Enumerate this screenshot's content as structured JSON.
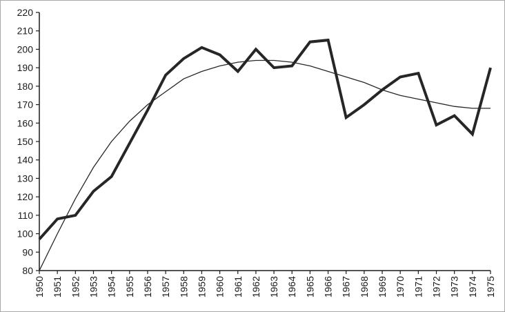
{
  "chart_data": {
    "type": "line",
    "title": "",
    "xlabel": "",
    "ylabel": "",
    "ylim": [
      80,
      220
    ],
    "yticks": [
      80,
      90,
      100,
      110,
      120,
      130,
      140,
      150,
      160,
      170,
      180,
      190,
      200,
      210,
      220
    ],
    "grid": false,
    "legend": "none",
    "x": [
      1950,
      1951,
      1952,
      1953,
      1954,
      1955,
      1956,
      1957,
      1958,
      1959,
      1960,
      1961,
      1962,
      1963,
      1964,
      1965,
      1966,
      1967,
      1968,
      1969,
      1970,
      1971,
      1972,
      1973,
      1974,
      1975
    ],
    "series": [
      {
        "style": "thick",
        "color": "#262626",
        "values": [
          97,
          108,
          110,
          123,
          131,
          149,
          167,
          186,
          195,
          201,
          197,
          188,
          200,
          190,
          191,
          204,
          205,
          163,
          170,
          178,
          185,
          187,
          159,
          164,
          154,
          190
        ]
      },
      {
        "style": "thin-trend",
        "color": "#262626",
        "values": [
          80,
          100,
          119,
          136,
          150,
          161,
          170,
          177,
          184,
          188,
          191,
          193,
          194,
          194,
          193,
          191,
          188,
          185,
          182,
          178,
          175,
          173,
          171,
          169,
          168,
          168
        ]
      }
    ]
  }
}
